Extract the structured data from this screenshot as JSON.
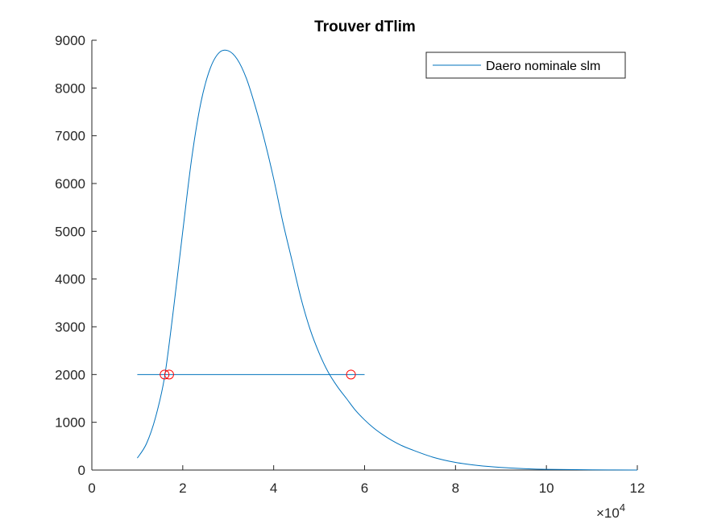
{
  "chart_data": {
    "type": "line",
    "title": "Trouver dTlim",
    "xlabel": "",
    "ylabel": "",
    "xlim": [
      0,
      120000
    ],
    "ylim": [
      0,
      9000
    ],
    "x_tick_values": [
      0,
      20000,
      40000,
      60000,
      80000,
      100000,
      120000
    ],
    "x_tick_labels": [
      "0",
      "2",
      "4",
      "6",
      "8",
      "10",
      "12"
    ],
    "x_exponent_label": "×10",
    "x_exponent_power": "4",
    "y_tick_values": [
      0,
      1000,
      2000,
      3000,
      4000,
      5000,
      6000,
      7000,
      8000,
      9000
    ],
    "y_tick_labels": [
      "0",
      "1000",
      "2000",
      "3000",
      "4000",
      "5000",
      "6000",
      "7000",
      "8000",
      "9000"
    ],
    "grid": false,
    "legend_position": "top-right",
    "series": [
      {
        "name": "Daero nominale slm",
        "color": "#0072BD",
        "x": [
          10000,
          12000,
          14000,
          16000,
          18000,
          20000,
          22000,
          24000,
          26000,
          28000,
          30000,
          32000,
          34000,
          36000,
          38000,
          40000,
          42000,
          44000,
          46000,
          48000,
          50000,
          52000,
          54000,
          56000,
          58000,
          60000,
          62000,
          64000,
          66000,
          68000,
          70000,
          75000,
          80000,
          85000,
          90000,
          95000,
          100000,
          110000,
          120000
        ],
        "y": [
          250,
          550,
          1100,
          1950,
          3400,
          5000,
          6550,
          7700,
          8400,
          8740,
          8780,
          8600,
          8200,
          7600,
          6900,
          6100,
          5200,
          4400,
          3600,
          2950,
          2450,
          2050,
          1750,
          1500,
          1250,
          1050,
          880,
          740,
          620,
          520,
          440,
          270,
          160,
          95,
          55,
          30,
          15,
          5,
          1
        ]
      },
      {
        "name": "",
        "color": "#0072BD",
        "x": [
          10000,
          60000
        ],
        "y": [
          2000,
          2000
        ]
      }
    ],
    "markers": {
      "style": "circle",
      "color": "#FF0000",
      "points": [
        {
          "x": 16000,
          "y": 2000
        },
        {
          "x": 17000,
          "y": 2000
        },
        {
          "x": 57000,
          "y": 2000
        }
      ]
    }
  }
}
